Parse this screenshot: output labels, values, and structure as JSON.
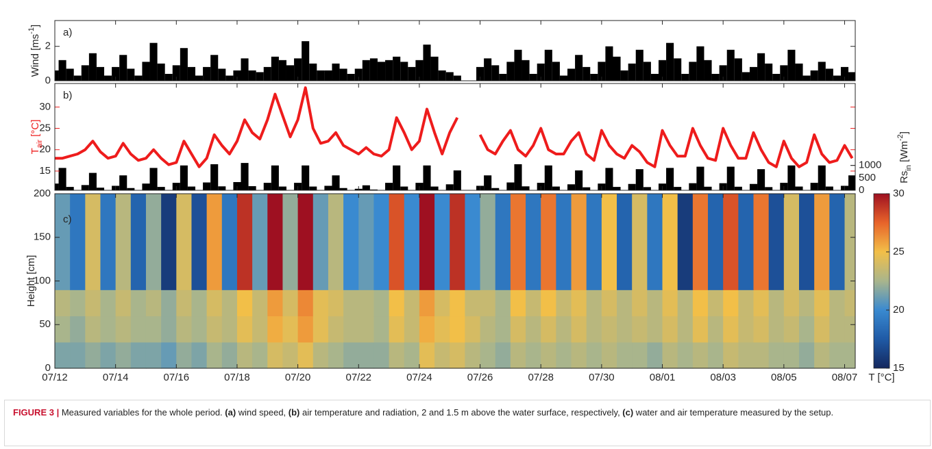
{
  "chart_data": [
    {
      "type": "bar",
      "label": "a)",
      "ylabel": [
        "Wind [ms",
        "-1",
        "]"
      ],
      "color": "#000000",
      "xlim": [
        0,
        26.35
      ],
      "ylim": [
        0,
        3.5
      ],
      "yticks": [
        0,
        2
      ],
      "x": [
        0,
        0.25,
        0.5,
        0.75,
        1,
        1.25,
        1.5,
        1.75,
        2,
        2.25,
        2.5,
        2.75,
        3,
        3.25,
        3.5,
        3.75,
        4,
        4.25,
        4.5,
        4.75,
        5,
        5.25,
        5.5,
        5.75,
        6,
        6.25,
        6.5,
        6.75,
        7,
        7.25,
        7.5,
        7.75,
        8,
        8.25,
        8.5,
        8.75,
        9,
        9.25,
        9.5,
        9.75,
        10,
        10.25,
        10.5,
        10.75,
        11,
        11.25,
        11.5,
        11.75,
        12,
        12.25,
        12.5,
        12.75,
        13,
        13.25,
        13.5,
        13.75,
        14,
        14.25,
        14.5,
        14.75,
        15,
        15.25,
        15.5,
        15.75,
        16,
        16.25,
        16.5,
        16.75,
        17,
        17.25,
        17.5,
        17.75,
        18,
        18.25,
        18.5,
        18.75,
        19,
        19.25,
        19.5,
        19.75,
        20,
        20.25,
        20.5,
        20.75,
        21,
        21.25,
        21.5,
        21.75,
        22,
        22.25,
        22.5,
        22.75,
        23,
        23.25,
        23.5,
        23.75,
        24,
        24.25,
        24.5,
        24.75,
        25,
        25.25,
        25.5,
        25.75,
        26,
        26.25
      ],
      "values": [
        0.6,
        1.2,
        0.7,
        0.3,
        0.9,
        1.6,
        0.8,
        0.3,
        0.8,
        1.5,
        0.7,
        0.3,
        1.1,
        2.2,
        1.0,
        0.4,
        0.9,
        1.9,
        0.8,
        0.3,
        0.8,
        1.5,
        0.7,
        0.3,
        0.6,
        1.3,
        0.6,
        0.5,
        0.8,
        1.4,
        1.2,
        0.9,
        1.3,
        2.3,
        1.0,
        0.6,
        0.6,
        1.0,
        0.7,
        0.4,
        0.7,
        1.2,
        1.3,
        1.1,
        1.2,
        1.4,
        1.1,
        0.8,
        1.2,
        2.1,
        1.4,
        0.6,
        0.5,
        0.3,
        0,
        0,
        0.8,
        1.3,
        0.9,
        0.4,
        1.1,
        1.8,
        1.2,
        0.4,
        1.0,
        1.8,
        1.1,
        0.3,
        0.7,
        1.5,
        0.8,
        0.4,
        1.1,
        2.0,
        1.4,
        0.6,
        1.0,
        1.8,
        1.1,
        0.4,
        1.2,
        2.2,
        1.3,
        0.4,
        1.1,
        2.0,
        1.2,
        0.4,
        0.9,
        1.8,
        1.3,
        0.5,
        0.8,
        1.6,
        1.0,
        0.4,
        0.9,
        1.8,
        1.0,
        0.3,
        0.6,
        1.1,
        0.7,
        0.3,
        0.8,
        0.5
      ]
    },
    {
      "type": "line",
      "label": "b)",
      "ylabel": [
        "T",
        "air",
        " [°C]"
      ],
      "y2label": [
        "Rs",
        "in",
        " [Wm",
        "-2",
        "]"
      ],
      "xlim": [
        0,
        26.35
      ],
      "ylim": [
        10.5,
        35.5
      ],
      "yticks": [
        15,
        20,
        25,
        30
      ],
      "y2lim": [
        0,
        4300
      ],
      "y2ticks": [
        0,
        500,
        1000
      ],
      "x": [
        0,
        0.25,
        0.5,
        0.75,
        1,
        1.25,
        1.5,
        1.75,
        2,
        2.25,
        2.5,
        2.75,
        3,
        3.25,
        3.5,
        3.75,
        4,
        4.25,
        4.5,
        4.75,
        5,
        5.25,
        5.5,
        5.75,
        6,
        6.25,
        6.5,
        6.75,
        7,
        7.25,
        7.5,
        7.75,
        8,
        8.25,
        8.5,
        8.75,
        9,
        9.25,
        9.5,
        9.75,
        10,
        10.25,
        10.5,
        10.75,
        11,
        11.25,
        11.5,
        11.75,
        12,
        12.25,
        12.5,
        12.75,
        13,
        13.25,
        13.5,
        13.75,
        14,
        14.25,
        14.5,
        14.75,
        15,
        15.25,
        15.5,
        15.75,
        16,
        16.25,
        16.5,
        16.75,
        17,
        17.25,
        17.5,
        17.75,
        18,
        18.25,
        18.5,
        18.75,
        19,
        19.25,
        19.5,
        19.75,
        20,
        20.25,
        20.5,
        20.75,
        21,
        21.25,
        21.5,
        21.75,
        22,
        22.25,
        22.5,
        22.75,
        23,
        23.25,
        23.5,
        23.75,
        24,
        24.25,
        24.5,
        24.75,
        25,
        25.25,
        25.5,
        25.75,
        26,
        26.25
      ],
      "series": [
        {
          "color": "#ee1c1c",
          "values": [
            18,
            18,
            18.5,
            19,
            20,
            22,
            19.5,
            18,
            18.5,
            21.5,
            19,
            17.5,
            18,
            20,
            18,
            16.5,
            17,
            22,
            19,
            16,
            18,
            23.5,
            21,
            19,
            22,
            27,
            24,
            22.5,
            27,
            33,
            28,
            23,
            27,
            34.5,
            25,
            21.5,
            22,
            24,
            21,
            20,
            19,
            20.5,
            19,
            18.5,
            20,
            27.5,
            24,
            20,
            22,
            29.5,
            24,
            19,
            24,
            27.5,
            null,
            null,
            23.5,
            20,
            19,
            22,
            24.5,
            20,
            18.5,
            21,
            25,
            20,
            19,
            19,
            22,
            24,
            19,
            17.5,
            24.5,
            21,
            19,
            18,
            21,
            19.5,
            17,
            16,
            24.5,
            21,
            18.5,
            18.5,
            25,
            21,
            18,
            17.5,
            25,
            21,
            18,
            18,
            24,
            20,
            17,
            16,
            22,
            18,
            16,
            17,
            23.5,
            19,
            17,
            17.5,
            21,
            18
          ]
        },
        {
          "color": "#000000",
          "axis": "y2",
          "values": [
            270,
            900,
            135,
            0,
            210,
            700,
            105,
            0,
            180,
            600,
            90,
            0,
            270,
            900,
            135,
            0,
            300,
            1000,
            150,
            0,
            315,
            1050,
            158,
            0,
            330,
            1100,
            165,
            0,
            300,
            1000,
            150,
            0,
            300,
            1000,
            150,
            0,
            180,
            600,
            90,
            0,
            60,
            200,
            30,
            0,
            300,
            1000,
            150,
            0,
            300,
            1000,
            150,
            0,
            240,
            800,
            null,
            null,
            180,
            600,
            90,
            0,
            315,
            1050,
            158,
            0,
            300,
            1000,
            150,
            0,
            240,
            800,
            120,
            0,
            270,
            900,
            135,
            0,
            255,
            850,
            128,
            0,
            270,
            900,
            135,
            0,
            285,
            950,
            143,
            0,
            285,
            950,
            143,
            0,
            255,
            850,
            128,
            0,
            300,
            1000,
            150,
            0,
            300,
            1000,
            150,
            0,
            180,
            600
          ]
        }
      ]
    },
    {
      "type": "heatmap",
      "label": "c)",
      "ylabel": "Height [cm]",
      "zlabel": "T [°C]",
      "xlim": [
        0,
        26.35
      ],
      "xticks": [
        {
          "value": 0,
          "label": "07/12"
        },
        {
          "value": 2,
          "label": "07/14"
        },
        {
          "value": 4,
          "label": "07/16"
        },
        {
          "value": 6,
          "label": "07/18"
        },
        {
          "value": 8,
          "label": "07/20"
        },
        {
          "value": 10,
          "label": "07/22"
        },
        {
          "value": 12,
          "label": "07/24"
        },
        {
          "value": 14,
          "label": "07/26"
        },
        {
          "value": 16,
          "label": "07/28"
        },
        {
          "value": 18,
          "label": "07/30"
        },
        {
          "value": 20,
          "label": "08/01"
        },
        {
          "value": 22,
          "label": "08/03"
        },
        {
          "value": 24,
          "label": "08/05"
        },
        {
          "value": 26,
          "label": "08/07"
        }
      ],
      "ylim": [
        0,
        200
      ],
      "yticks": [
        0,
        50,
        100,
        150,
        200
      ],
      "zlim": [
        15,
        30
      ],
      "zticks": [
        15,
        20,
        25,
        30
      ],
      "colormap": [
        "#14285e",
        "#1f5aa6",
        "#3a8ad0",
        "#a9b58c",
        "#f2bf48",
        "#e8642a",
        "#9e1021"
      ],
      "x_edges": [
        0,
        0.5,
        1,
        1.5,
        2,
        2.5,
        3,
        3.5,
        4,
        4.5,
        5,
        5.5,
        6,
        6.5,
        7,
        7.5,
        8,
        8.5,
        9,
        9.5,
        10,
        10.5,
        11,
        11.5,
        12,
        12.5,
        13,
        13.5,
        14,
        14.5,
        15,
        15.5,
        16,
        16.5,
        17,
        17.5,
        18,
        18.5,
        19,
        19.5,
        20,
        20.5,
        21,
        21.5,
        22,
        22.5,
        23,
        23.5,
        24,
        24.5,
        25,
        25.5,
        26,
        26.5
      ],
      "y_edges": [
        0,
        30,
        60,
        90,
        200
      ],
      "z": [
        [
          21.5,
          21.5,
          22,
          21.5,
          22,
          21.5,
          21.5,
          21,
          22,
          21.5,
          22.5,
          22,
          23,
          22.5,
          24,
          23.5,
          24.5,
          23,
          22.5,
          22,
          22,
          22,
          23,
          22.5,
          24.5,
          23.5,
          24,
          23,
          22.5,
          22,
          23,
          22.5,
          23,
          22.5,
          23,
          22.5,
          23,
          22.5,
          22.5,
          22,
          23,
          22.5,
          23,
          22.5,
          23.5,
          23,
          23,
          22.5,
          22.5,
          22,
          23,
          22.5,
          22.5
        ],
        [
          22.5,
          22,
          23,
          22.5,
          23,
          22.5,
          22.5,
          22,
          23,
          22.5,
          23.5,
          23,
          24.5,
          23.5,
          25.5,
          24.5,
          26,
          24.5,
          23.5,
          23,
          23,
          22.5,
          24.5,
          23.5,
          25.5,
          24.5,
          25,
          24,
          23,
          22.5,
          24,
          23,
          24,
          23,
          24,
          23,
          23.5,
          23,
          23.5,
          23,
          24,
          23,
          24.5,
          23,
          24.5,
          23.5,
          24,
          23,
          23.5,
          22.5,
          24,
          23,
          23
        ],
        [
          23,
          22.5,
          23.5,
          22.5,
          23.5,
          22.5,
          23,
          22,
          23.5,
          22.5,
          24,
          23,
          25,
          23.5,
          26,
          24,
          26.5,
          24.5,
          24,
          23,
          23,
          22.5,
          25,
          23.5,
          26,
          24,
          25,
          23.5,
          23.5,
          22.5,
          25,
          23.5,
          25,
          23.5,
          24.5,
          23,
          24,
          23,
          24,
          23,
          24.5,
          23,
          25,
          23.5,
          25,
          23.5,
          24.5,
          23,
          24,
          23,
          24.5,
          23,
          23.5
        ],
        [
          21,
          19,
          24,
          19,
          23,
          18,
          22,
          16,
          24,
          17,
          26,
          19,
          29,
          21,
          31,
          22,
          31,
          21,
          23,
          20,
          21,
          20,
          28,
          20,
          30,
          20,
          29,
          20,
          22,
          19,
          27,
          19,
          27,
          19,
          26,
          19,
          25,
          18,
          24,
          19,
          25,
          16,
          27,
          18,
          28,
          18,
          27,
          17,
          24,
          17,
          26,
          18,
          23
        ]
      ]
    }
  ],
  "caption": [
    {
      "text": "FIGURE 3 |",
      "bold": true
    },
    {
      "text": " Measured variables for the whole period. "
    },
    {
      "text": "(a)",
      "bold": true
    },
    {
      "text": " wind speed, "
    },
    {
      "text": "(b)",
      "bold": true
    },
    {
      "text": " air temperature and radiation, 2 and 1.5 m above the water surface, respectively, "
    },
    {
      "text": "(c)",
      "bold": true
    },
    {
      "text": " water and air temperature measured by the setup."
    }
  ]
}
